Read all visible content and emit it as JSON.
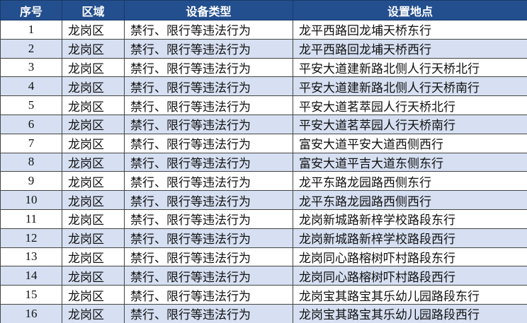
{
  "table": {
    "header": [
      "序号",
      "区域",
      "设备类型",
      "设置地点"
    ],
    "rows": [
      [
        1,
        "龙岗区",
        "禁行、限行等违法行为",
        "龙平西路回龙埔天桥东行"
      ],
      [
        2,
        "龙岗区",
        "禁行、限行等违法行为",
        "龙平西路回龙埔天桥西行"
      ],
      [
        3,
        "龙岗区",
        "禁行、限行等违法行为",
        "平安大道建新路北侧人行天桥北行"
      ],
      [
        4,
        "龙岗区",
        "禁行、限行等违法行为",
        "平安大道建新路北侧人行天桥南行"
      ],
      [
        5,
        "龙岗区",
        "禁行、限行等违法行为",
        "平安大道茗萃园人行天桥北行"
      ],
      [
        6,
        "龙岗区",
        "禁行、限行等违法行为",
        "平安大道茗萃园人行天桥南行"
      ],
      [
        7,
        "龙岗区",
        "禁行、限行等违法行为",
        "富安大道平安大道西侧西行"
      ],
      [
        8,
        "龙岗区",
        "禁行、限行等违法行为",
        "富安大道平吉大道东侧东行"
      ],
      [
        9,
        "龙岗区",
        "禁行、限行等违法行为",
        "龙平东路龙园路西侧东行"
      ],
      [
        10,
        "龙岗区",
        "禁行、限行等违法行为",
        "龙平东路龙园路西侧西行"
      ],
      [
        11,
        "龙岗区",
        "禁行、限行等违法行为",
        "龙岗新城路新梓学校路段东行"
      ],
      [
        12,
        "龙岗区",
        "禁行、限行等违法行为",
        "龙岗新城路新梓学校路段西行"
      ],
      [
        13,
        "龙岗区",
        "禁行、限行等违法行为",
        "龙岗同心路榕树吓村路段东行"
      ],
      [
        14,
        "龙岗区",
        "禁行、限行等违法行为",
        "龙岗同心路榕树吓村路段西行"
      ],
      [
        15,
        "龙岗区",
        "禁行、限行等违法行为",
        "龙岗宝其路宝其乐幼儿园路段东行"
      ],
      [
        16,
        "龙岗区",
        "禁行、限行等违法行为",
        "龙岗宝其路宝其乐幼儿园路段西行"
      ]
    ]
  }
}
